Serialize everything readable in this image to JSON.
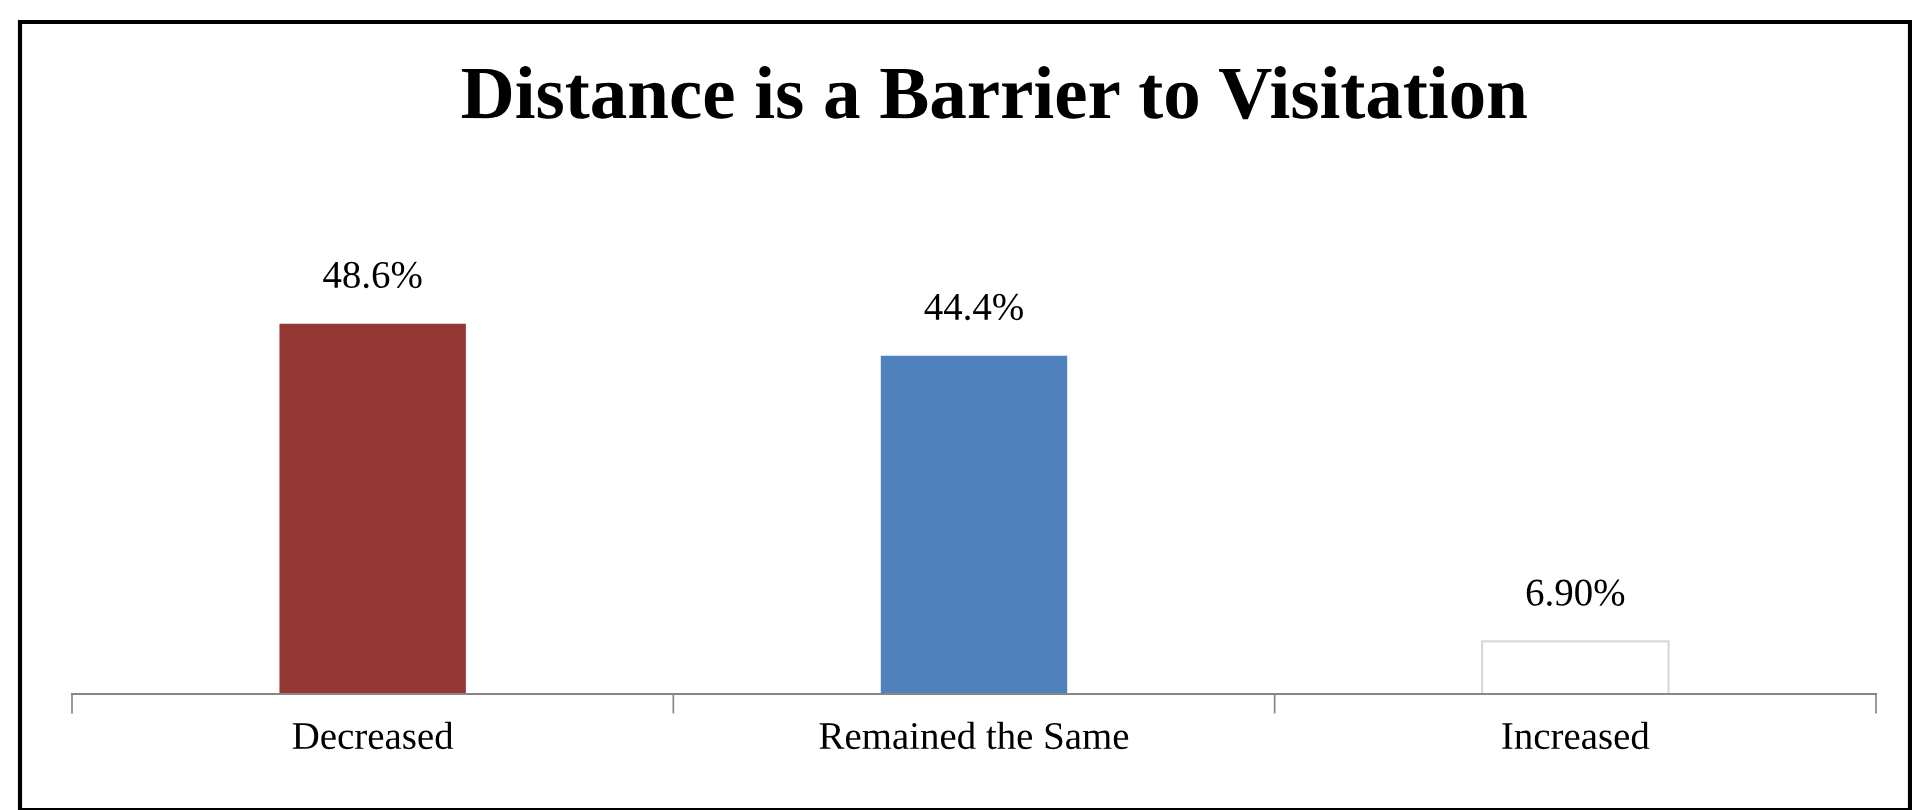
{
  "chart_data": {
    "type": "bar",
    "title": "Distance is a Barrier to Visitation",
    "categories": [
      "Decreased",
      "Remained the Same",
      "Increased"
    ],
    "values": [
      48.6,
      44.4,
      6.9
    ],
    "colors": [
      "#953735",
      "#4f81bd",
      "#ffffff"
    ],
    "value_labels": [
      "48.6%",
      "44.4%",
      "6.90%"
    ],
    "grid": false,
    "legend": false
  }
}
